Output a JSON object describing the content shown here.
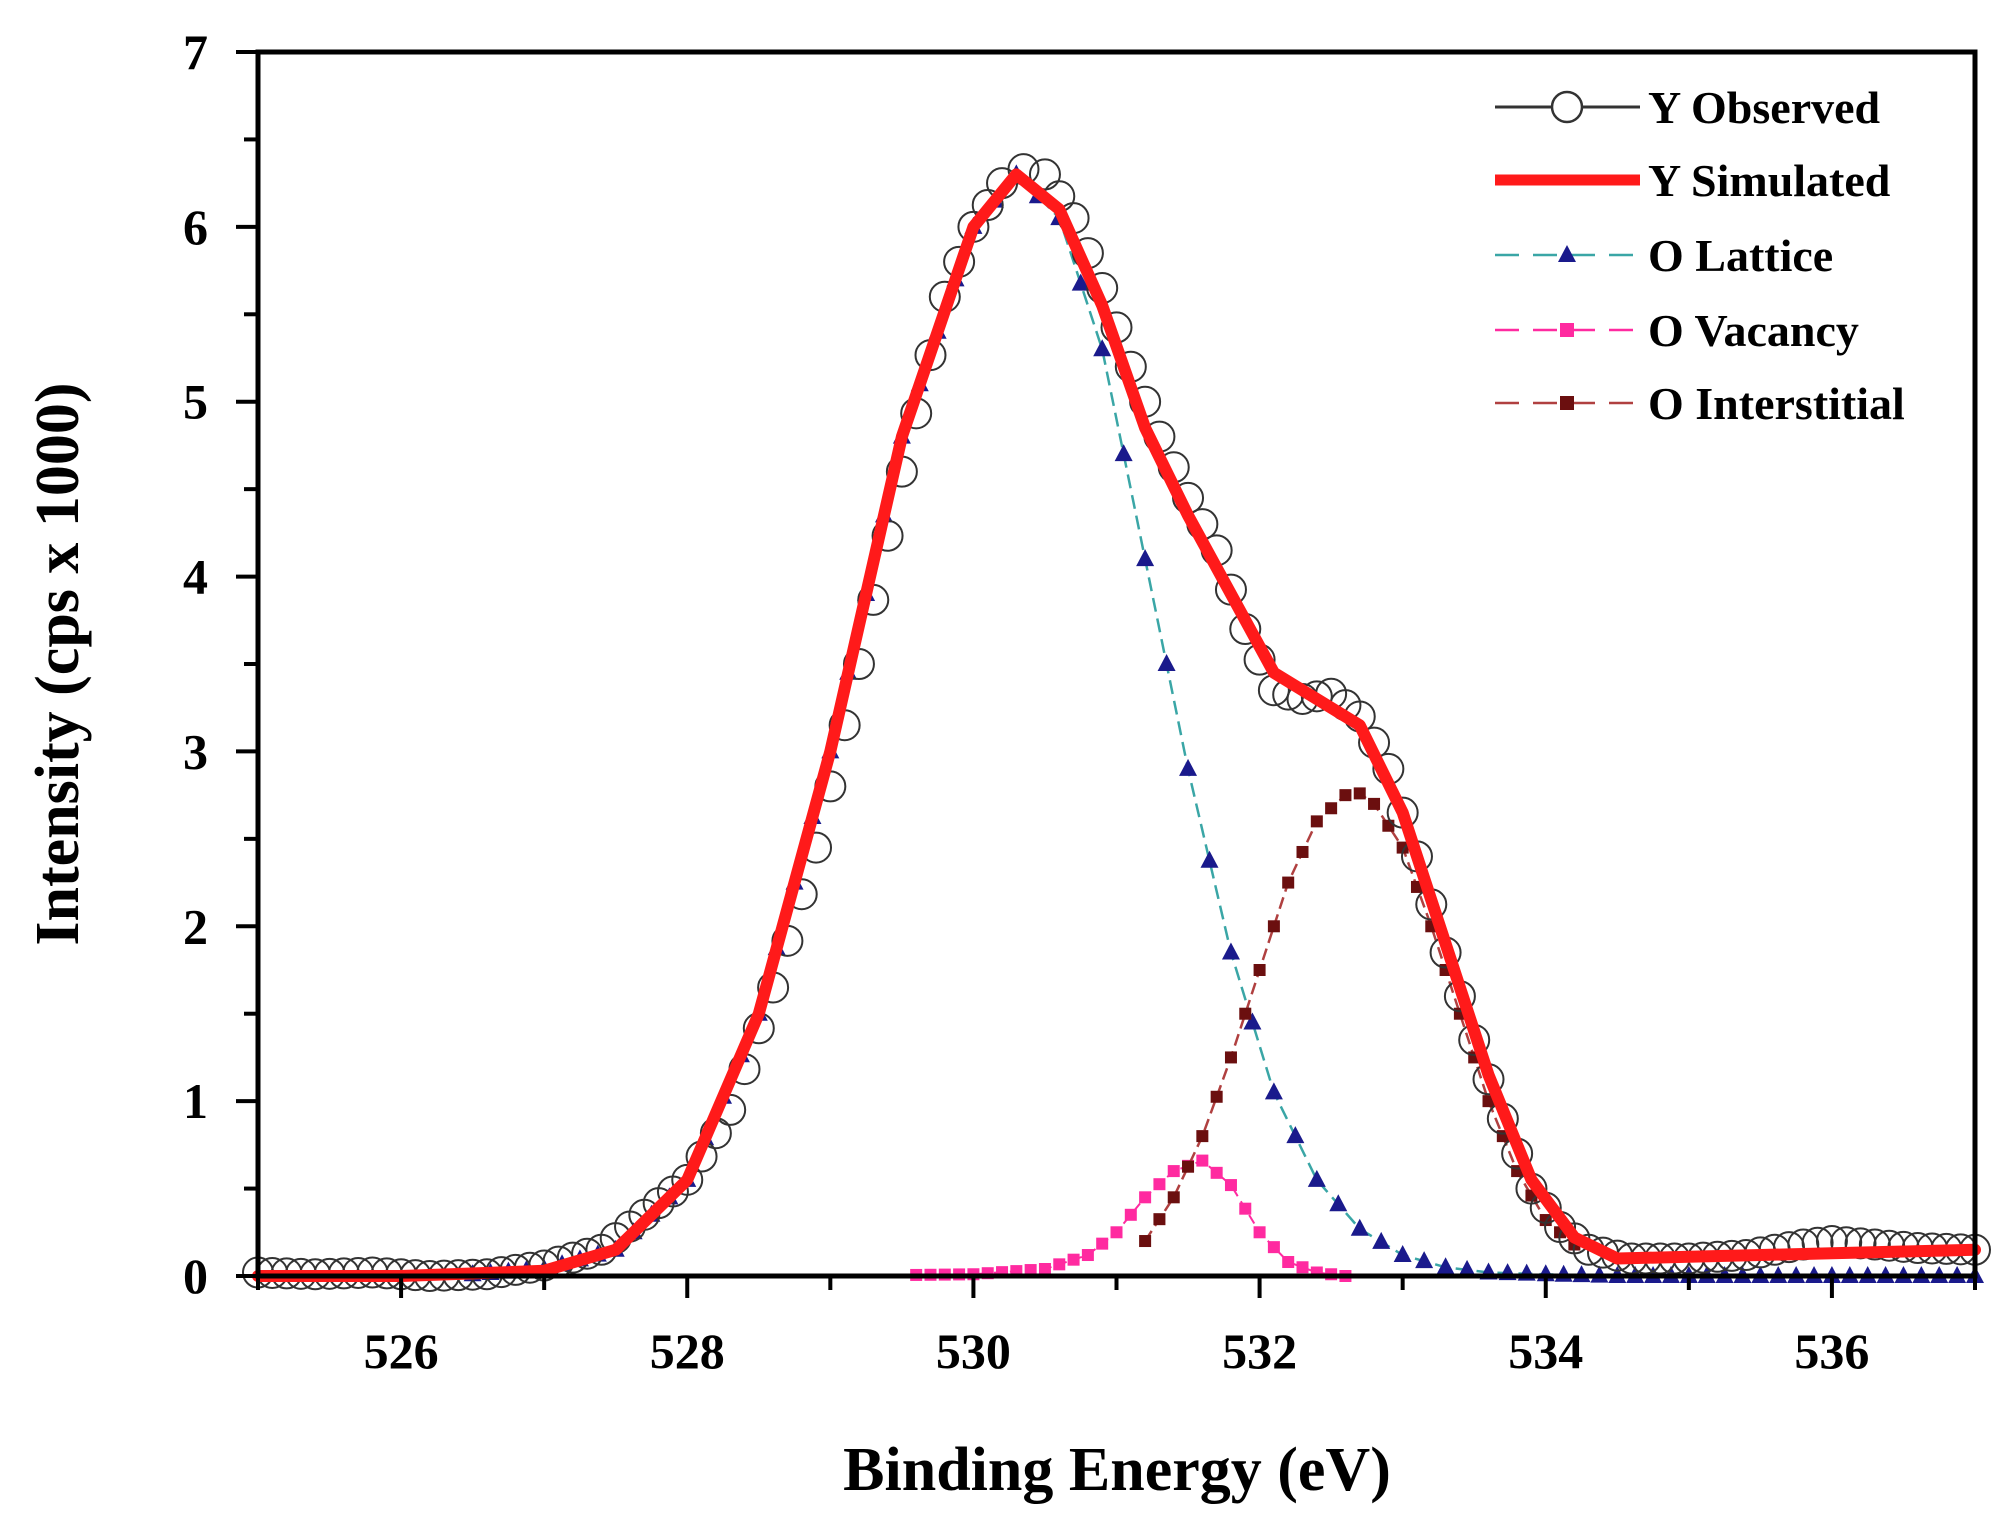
{
  "chart_data": {
    "type": "line",
    "title": "",
    "xlabel": "Binding Energy (eV)",
    "ylabel": "Intensity (cps x 1000)",
    "xlim": [
      525,
      537
    ],
    "ylim": [
      0,
      7
    ],
    "x_ticks": [
      "526",
      "528",
      "530",
      "532",
      "534",
      "536"
    ],
    "x_tick_values": [
      526,
      528,
      530,
      532,
      534,
      536
    ],
    "y_ticks": [
      "0",
      "1",
      "2",
      "3",
      "4",
      "5",
      "6",
      "7"
    ],
    "y_tick_values": [
      0,
      1,
      2,
      3,
      4,
      5,
      6,
      7
    ],
    "grid": false,
    "legend_position": "top-right",
    "colors": {
      "observed": "#333333",
      "simulated": "#ff1a1a",
      "lattice_line": "#3aa6a6",
      "lattice_marker": "#1a1a8c",
      "vacancy": "#ff2aa0",
      "interstitial_line": "#b04040",
      "interstitial_marker": "#6b0f0f"
    },
    "series": [
      {
        "name": "Y Observed",
        "style": "open-circle",
        "color": "#333333",
        "x": [
          525.0,
          525.4,
          525.8,
          526.2,
          526.6,
          527.0,
          527.4,
          527.7,
          528.0,
          528.3,
          528.6,
          528.9,
          529.2,
          529.5,
          529.8,
          530.0,
          530.2,
          530.35,
          530.5,
          530.7,
          530.9,
          531.1,
          531.3,
          531.5,
          531.7,
          531.9,
          532.1,
          532.3,
          532.5,
          532.7,
          532.9,
          533.1,
          533.3,
          533.5,
          533.7,
          533.9,
          534.1,
          534.3,
          534.6,
          535.0,
          535.4,
          535.8,
          536.0,
          536.3,
          536.6,
          537.0
        ],
        "y": [
          0.02,
          0.01,
          0.02,
          0.0,
          0.01,
          0.06,
          0.15,
          0.35,
          0.55,
          0.95,
          1.65,
          2.45,
          3.5,
          4.6,
          5.6,
          6.0,
          6.25,
          6.33,
          6.3,
          6.05,
          5.65,
          5.2,
          4.8,
          4.45,
          4.15,
          3.7,
          3.35,
          3.3,
          3.33,
          3.2,
          2.9,
          2.4,
          1.85,
          1.35,
          0.9,
          0.5,
          0.28,
          0.15,
          0.1,
          0.1,
          0.12,
          0.18,
          0.2,
          0.18,
          0.16,
          0.15
        ]
      },
      {
        "name": "Y Simulated",
        "style": "thick-line",
        "color": "#ff1a1a",
        "x": [
          525.0,
          526.0,
          527.0,
          527.5,
          528.0,
          528.5,
          529.0,
          529.5,
          530.0,
          530.3,
          530.6,
          530.9,
          531.2,
          531.5,
          531.8,
          532.1,
          532.4,
          532.7,
          533.0,
          533.3,
          533.6,
          533.9,
          534.2,
          534.5,
          535.0,
          535.5,
          536.0,
          536.5,
          537.0
        ],
        "y": [
          0.0,
          0.0,
          0.03,
          0.15,
          0.55,
          1.5,
          3.0,
          4.8,
          6.0,
          6.3,
          6.1,
          5.55,
          4.85,
          4.35,
          3.9,
          3.45,
          3.3,
          3.15,
          2.65,
          1.9,
          1.15,
          0.55,
          0.22,
          0.1,
          0.11,
          0.12,
          0.13,
          0.14,
          0.15
        ]
      },
      {
        "name": "O Lattice",
        "style": "dashed-triangle",
        "color": "#1a1a8c",
        "x": [
          526.5,
          527.0,
          527.5,
          528.0,
          528.5,
          529.0,
          529.5,
          530.0,
          530.3,
          530.6,
          530.9,
          531.2,
          531.5,
          531.8,
          532.1,
          532.4,
          532.7,
          533.0,
          533.3,
          533.6,
          534.0,
          534.5,
          535.0,
          535.5,
          536.0,
          536.5,
          537.0
        ],
        "y": [
          0.01,
          0.04,
          0.15,
          0.55,
          1.5,
          3.0,
          4.8,
          6.0,
          6.3,
          6.05,
          5.3,
          4.1,
          2.9,
          1.85,
          1.05,
          0.55,
          0.27,
          0.12,
          0.05,
          0.02,
          0.01,
          0.0,
          0.0,
          0.0,
          0.0,
          0.0,
          0.0
        ]
      },
      {
        "name": "O Vacancy",
        "style": "dashed-square",
        "color": "#ff2aa0",
        "x": [
          525.0,
          526.0,
          527.0,
          528.0,
          529.0,
          530.0,
          530.5,
          530.8,
          531.0,
          531.2,
          531.4,
          531.6,
          531.8,
          532.0,
          532.2,
          532.4,
          532.6,
          533.0,
          534.0,
          535.0,
          536.0,
          537.0
        ],
        "y": [
          0.0,
          0.0,
          0.0,
          0.0,
          0.0,
          0.01,
          0.04,
          0.12,
          0.25,
          0.45,
          0.6,
          0.66,
          0.52,
          0.25,
          0.08,
          0.02,
          0.0,
          0.0,
          0.0,
          0.0,
          0.0,
          0.0
        ]
      },
      {
        "name": "O Interstitial",
        "style": "dashed-square",
        "color": "#6b0f0f",
        "x": [
          531.2,
          531.4,
          531.6,
          531.8,
          532.0,
          532.2,
          532.4,
          532.6,
          532.7,
          532.8,
          533.0,
          533.2,
          533.4,
          533.6,
          533.8,
          534.0,
          534.2,
          534.5,
          535.0,
          535.5,
          536.0,
          536.5,
          537.0
        ],
        "y": [
          0.2,
          0.45,
          0.8,
          1.25,
          1.75,
          2.25,
          2.6,
          2.75,
          2.76,
          2.7,
          2.45,
          2.0,
          1.5,
          1.0,
          0.6,
          0.32,
          0.18,
          0.11,
          0.11,
          0.12,
          0.13,
          0.14,
          0.15
        ]
      }
    ]
  }
}
